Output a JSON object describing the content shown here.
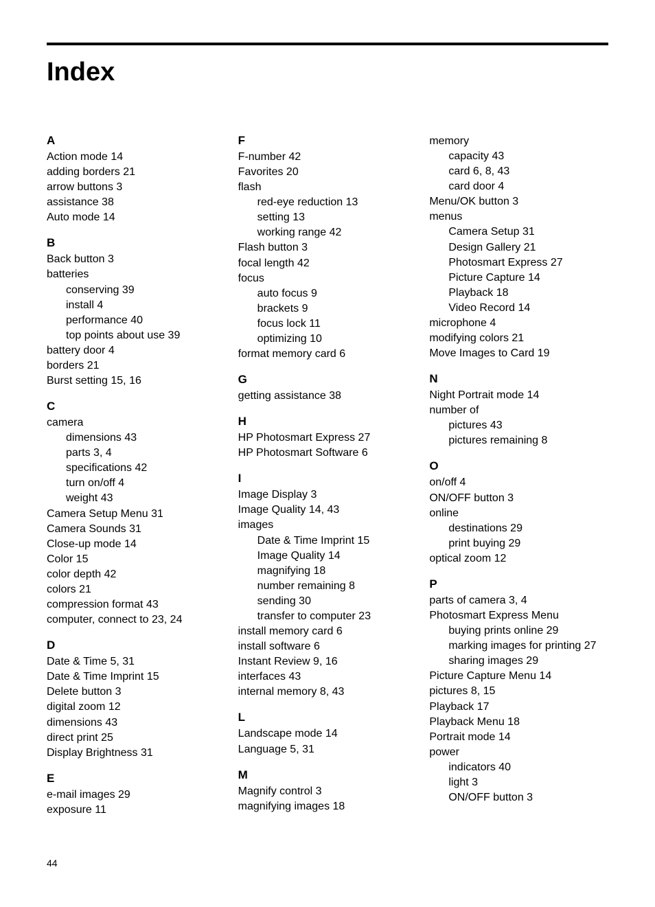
{
  "title": "Index",
  "page_number": "44",
  "columns": [
    {
      "sections": [
        {
          "letter": "A",
          "items": [
            {
              "text": "Action mode 14",
              "sub": false
            },
            {
              "text": "adding borders 21",
              "sub": false
            },
            {
              "text": "arrow buttons 3",
              "sub": false
            },
            {
              "text": "assistance 38",
              "sub": false
            },
            {
              "text": "Auto mode 14",
              "sub": false
            }
          ]
        },
        {
          "letter": "B",
          "items": [
            {
              "text": "Back button 3",
              "sub": false
            },
            {
              "text": "batteries",
              "sub": false
            },
            {
              "text": "conserving 39",
              "sub": true
            },
            {
              "text": "install 4",
              "sub": true
            },
            {
              "text": "performance 40",
              "sub": true
            },
            {
              "text": "top points about use 39",
              "sub": true
            },
            {
              "text": "battery door 4",
              "sub": false
            },
            {
              "text": "borders 21",
              "sub": false
            },
            {
              "text": "Burst setting 15, 16",
              "sub": false
            }
          ]
        },
        {
          "letter": "C",
          "items": [
            {
              "text": "camera",
              "sub": false
            },
            {
              "text": "dimensions 43",
              "sub": true
            },
            {
              "text": "parts 3, 4",
              "sub": true
            },
            {
              "text": "specifications 42",
              "sub": true
            },
            {
              "text": "turn on/off 4",
              "sub": true
            },
            {
              "text": "weight 43",
              "sub": true
            },
            {
              "text": "Camera Setup Menu 31",
              "sub": false
            },
            {
              "text": "Camera Sounds 31",
              "sub": false
            },
            {
              "text": "Close-up mode 14",
              "sub": false
            },
            {
              "text": "Color 15",
              "sub": false
            },
            {
              "text": "color depth 42",
              "sub": false
            },
            {
              "text": "colors 21",
              "sub": false
            },
            {
              "text": "compression format 43",
              "sub": false
            },
            {
              "text": "computer, connect to 23, 24",
              "sub": false
            }
          ]
        },
        {
          "letter": "D",
          "items": [
            {
              "text": "Date & Time 5, 31",
              "sub": false
            },
            {
              "text": "Date & Time Imprint 15",
              "sub": false
            },
            {
              "text": "Delete button 3",
              "sub": false
            },
            {
              "text": "digital zoom 12",
              "sub": false
            },
            {
              "text": "dimensions 43",
              "sub": false
            },
            {
              "text": "direct print 25",
              "sub": false
            },
            {
              "text": "Display Brightness 31",
              "sub": false
            }
          ]
        },
        {
          "letter": "E",
          "items": [
            {
              "text": "e-mail images 29",
              "sub": false
            },
            {
              "text": "exposure 11",
              "sub": false
            }
          ]
        }
      ]
    },
    {
      "sections": [
        {
          "letter": "F",
          "items": [
            {
              "text": "F-number 42",
              "sub": false
            },
            {
              "text": "Favorites 20",
              "sub": false
            },
            {
              "text": "flash",
              "sub": false
            },
            {
              "text": "red-eye reduction 13",
              "sub": true
            },
            {
              "text": "setting 13",
              "sub": true
            },
            {
              "text": "working range 42",
              "sub": true
            },
            {
              "text": "Flash button 3",
              "sub": false
            },
            {
              "text": "focal length 42",
              "sub": false
            },
            {
              "text": "focus",
              "sub": false
            },
            {
              "text": "auto focus 9",
              "sub": true
            },
            {
              "text": "brackets 9",
              "sub": true
            },
            {
              "text": "focus lock 11",
              "sub": true
            },
            {
              "text": "optimizing 10",
              "sub": true
            },
            {
              "text": "format memory card 6",
              "sub": false
            }
          ]
        },
        {
          "letter": "G",
          "items": [
            {
              "text": "getting assistance 38",
              "sub": false
            }
          ]
        },
        {
          "letter": "H",
          "items": [
            {
              "text": "HP Photosmart Express 27",
              "sub": false
            },
            {
              "text": "HP Photosmart Software 6",
              "sub": false
            }
          ]
        },
        {
          "letter": "I",
          "items": [
            {
              "text": "Image Display 3",
              "sub": false
            },
            {
              "text": "Image Quality 14, 43",
              "sub": false
            },
            {
              "text": "images",
              "sub": false
            },
            {
              "text": "Date & Time Imprint 15",
              "sub": true
            },
            {
              "text": "Image Quality 14",
              "sub": true
            },
            {
              "text": "magnifying 18",
              "sub": true
            },
            {
              "text": "number remaining 8",
              "sub": true
            },
            {
              "text": "sending 30",
              "sub": true
            },
            {
              "text": "transfer to computer 23",
              "sub": true
            },
            {
              "text": "install memory card 6",
              "sub": false
            },
            {
              "text": "install software 6",
              "sub": false
            },
            {
              "text": "Instant Review 9, 16",
              "sub": false
            },
            {
              "text": "interfaces 43",
              "sub": false
            },
            {
              "text": "internal memory 8, 43",
              "sub": false
            }
          ]
        },
        {
          "letter": "L",
          "items": [
            {
              "text": "Landscape mode 14",
              "sub": false
            },
            {
              "text": "Language 5, 31",
              "sub": false
            }
          ]
        },
        {
          "letter": "M",
          "items": [
            {
              "text": "Magnify control 3",
              "sub": false
            },
            {
              "text": "magnifying images 18",
              "sub": false
            }
          ]
        }
      ]
    },
    {
      "sections": [
        {
          "letter": "",
          "items": [
            {
              "text": "memory",
              "sub": false
            },
            {
              "text": "capacity 43",
              "sub": true
            },
            {
              "text": "card 6, 8, 43",
              "sub": true
            },
            {
              "text": "card door 4",
              "sub": true
            },
            {
              "text": "Menu/OK button 3",
              "sub": false
            },
            {
              "text": "menus",
              "sub": false
            },
            {
              "text": "Camera Setup 31",
              "sub": true
            },
            {
              "text": "Design Gallery 21",
              "sub": true
            },
            {
              "text": "Photosmart Express 27",
              "sub": true
            },
            {
              "text": "Picture Capture 14",
              "sub": true
            },
            {
              "text": "Playback 18",
              "sub": true
            },
            {
              "text": "Video Record 14",
              "sub": true
            },
            {
              "text": "microphone 4",
              "sub": false
            },
            {
              "text": "modifying colors 21",
              "sub": false
            },
            {
              "text": "Move Images to Card 19",
              "sub": false
            }
          ]
        },
        {
          "letter": "N",
          "items": [
            {
              "text": "Night Portrait mode 14",
              "sub": false
            },
            {
              "text": "number of",
              "sub": false
            },
            {
              "text": "pictures 43",
              "sub": true
            },
            {
              "text": "pictures remaining 8",
              "sub": true
            }
          ]
        },
        {
          "letter": "O",
          "items": [
            {
              "text": "on/off 4",
              "sub": false
            },
            {
              "text": "ON/OFF button 3",
              "sub": false
            },
            {
              "text": "online",
              "sub": false
            },
            {
              "text": "destinations 29",
              "sub": true
            },
            {
              "text": "print buying 29",
              "sub": true
            },
            {
              "text": "optical zoom 12",
              "sub": false
            }
          ]
        },
        {
          "letter": "P",
          "items": [
            {
              "text": "parts of camera 3, 4",
              "sub": false
            },
            {
              "text": "Photosmart Express Menu",
              "sub": false
            },
            {
              "text": "buying prints online 29",
              "sub": true
            },
            {
              "text": "marking images for printing 27",
              "sub": true
            },
            {
              "text": "sharing images 29",
              "sub": true
            },
            {
              "text": "Picture Capture Menu 14",
              "sub": false
            },
            {
              "text": "pictures 8, 15",
              "sub": false
            },
            {
              "text": "Playback 17",
              "sub": false
            },
            {
              "text": "Playback Menu 18",
              "sub": false
            },
            {
              "text": "Portrait mode 14",
              "sub": false
            },
            {
              "text": "power",
              "sub": false
            },
            {
              "text": "indicators 40",
              "sub": true
            },
            {
              "text": "light 3",
              "sub": true
            },
            {
              "text": "ON/OFF button 3",
              "sub": true
            }
          ]
        }
      ]
    }
  ]
}
